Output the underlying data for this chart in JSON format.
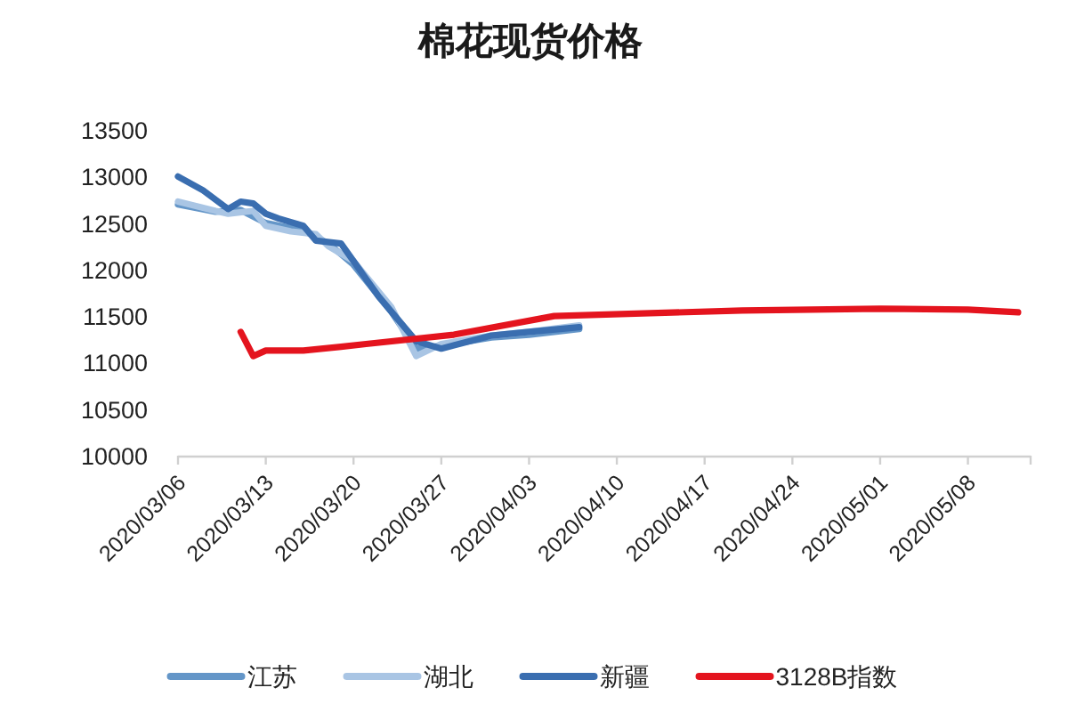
{
  "chart_data": {
    "type": "line",
    "title": "棉花现货价格",
    "xlim": [
      "2020-03-06",
      "2020-05-13"
    ],
    "xticks": [
      {
        "value": "2020-03-06",
        "label": "2020/03/06"
      },
      {
        "value": "2020-03-13",
        "label": "2020/03/13"
      },
      {
        "value": "2020-03-20",
        "label": "2020/03/20"
      },
      {
        "value": "2020-03-27",
        "label": "2020/03/27"
      },
      {
        "value": "2020-04-03",
        "label": "2020/04/03"
      },
      {
        "value": "2020-04-10",
        "label": "2020/04/10"
      },
      {
        "value": "2020-04-17",
        "label": "2020/04/17"
      },
      {
        "value": "2020-04-24",
        "label": "2020/04/24"
      },
      {
        "value": "2020-05-01",
        "label": "2020/05/01"
      },
      {
        "value": "2020-05-08",
        "label": "2020/05/08"
      }
    ],
    "ylim": [
      10000,
      13500
    ],
    "yticks": [
      10000,
      10500,
      11000,
      11500,
      12000,
      12500,
      13000,
      13500
    ],
    "legend": "bottom",
    "line_style": "solid",
    "series": [
      {
        "name": "江苏",
        "color": "#6496c8",
        "x": [
          "2020-03-06",
          "2020-03-09",
          "2020-03-11",
          "2020-03-13",
          "2020-03-16",
          "2020-03-18",
          "2020-03-20",
          "2020-03-23",
          "2020-03-25",
          "2020-03-27",
          "2020-03-31",
          "2020-04-03",
          "2020-04-07"
        ],
        "values": [
          12700,
          12620,
          12640,
          12500,
          12420,
          12280,
          12050,
          11550,
          11150,
          11180,
          11270,
          11300,
          11360
        ]
      },
      {
        "name": "湖北",
        "color": "#a9c5e4",
        "x": [
          "2020-03-06",
          "2020-03-09",
          "2020-03-10",
          "2020-03-12",
          "2020-03-13",
          "2020-03-15",
          "2020-03-17",
          "2020-03-18",
          "2020-03-20",
          "2020-03-23",
          "2020-03-25",
          "2020-03-27",
          "2020-03-31",
          "2020-04-03",
          "2020-04-07"
        ],
        "values": [
          12730,
          12630,
          12600,
          12630,
          12470,
          12410,
          12380,
          12250,
          12090,
          11600,
          11070,
          11200,
          11290,
          11330,
          11400
        ]
      },
      {
        "name": "新疆",
        "color": "#3a6eb0",
        "x": [
          "2020-03-06",
          "2020-03-08",
          "2020-03-10",
          "2020-03-11",
          "2020-03-12",
          "2020-03-13",
          "2020-03-14",
          "2020-03-16",
          "2020-03-17",
          "2020-03-19",
          "2020-03-20",
          "2020-03-21",
          "2020-03-22",
          "2020-03-25",
          "2020-03-27",
          "2020-03-31",
          "2020-04-03",
          "2020-04-07"
        ],
        "values": [
          13000,
          12850,
          12650,
          12730,
          12710,
          12600,
          12550,
          12470,
          12310,
          12280,
          12090,
          11900,
          11710,
          11230,
          11150,
          11290,
          11330,
          11380
        ]
      },
      {
        "name": "3128B指数",
        "color": "#e4141e",
        "x": [
          "2020-03-11",
          "2020-03-12",
          "2020-03-13",
          "2020-03-16",
          "2020-03-19",
          "2020-03-21",
          "2020-03-28",
          "2020-04-05",
          "2020-04-20",
          "2020-05-01",
          "2020-05-08",
          "2020-05-12"
        ],
        "values": [
          11330,
          11070,
          11130,
          11130,
          11170,
          11200,
          11300,
          11500,
          11560,
          11580,
          11570,
          11540
        ]
      }
    ]
  }
}
